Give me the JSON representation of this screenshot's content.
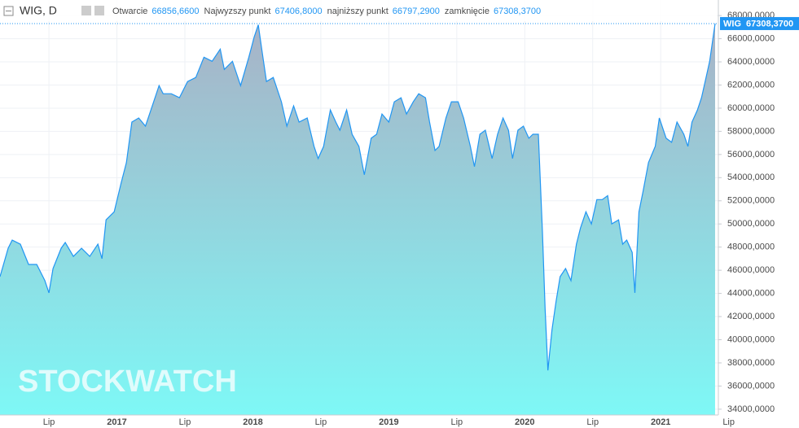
{
  "chart_data": {
    "type": "area",
    "header": {
      "symbol": "WIG, D",
      "items": [
        {
          "label": "Otwarcie",
          "value": "66856,6600"
        },
        {
          "label": "Najwyzszy punkt",
          "value": "67406,8000"
        },
        {
          "label": "najniższy punkt",
          "value": "66797,2900"
        },
        {
          "label": "zamknięcie",
          "value": "67308,3700"
        }
      ]
    },
    "watermark": "STOCKWATCH",
    "x": [
      2016.14,
      2016.2,
      2016.23,
      2016.29,
      2016.35,
      2016.41,
      2016.47,
      2016.5,
      2016.53,
      2016.59,
      2016.62,
      2016.68,
      2016.74,
      2016.8,
      2016.86,
      2016.89,
      2016.92,
      2016.98,
      2017.03,
      2017.07,
      2017.11,
      2017.16,
      2017.21,
      2017.25,
      2017.31,
      2017.34,
      2017.4,
      2017.46,
      2017.52,
      2017.58,
      2017.64,
      2017.7,
      2017.76,
      2017.79,
      2017.85,
      2017.91,
      2017.97,
      2018.01,
      2018.04,
      2018.07,
      2018.1,
      2018.15,
      2018.21,
      2018.25,
      2018.3,
      2018.34,
      2018.4,
      2018.45,
      2018.48,
      2018.52,
      2018.57,
      2018.61,
      2018.64,
      2018.69,
      2018.73,
      2018.78,
      2018.82,
      2018.87,
      2018.91,
      2018.95,
      2019.0,
      2019.04,
      2019.09,
      2019.13,
      2019.18,
      2019.22,
      2019.27,
      2019.3,
      2019.34,
      2019.37,
      2019.42,
      2019.46,
      2019.51,
      2019.55,
      2019.6,
      2019.63,
      2019.67,
      2019.71,
      2019.76,
      2019.8,
      2019.84,
      2019.88,
      2019.91,
      2019.95,
      2019.99,
      2020.03,
      2020.06,
      2020.1,
      2020.13,
      2020.15,
      2020.17,
      2020.2,
      2020.23,
      2020.26,
      2020.3,
      2020.34,
      2020.38,
      2020.41,
      2020.45,
      2020.49,
      2020.53,
      2020.57,
      2020.61,
      2020.64,
      2020.69,
      2020.72,
      2020.75,
      2020.79,
      2020.81,
      2020.84,
      2020.87,
      2020.91,
      2020.96,
      2020.99,
      2021.04,
      2021.08,
      2021.12,
      2021.17,
      2021.2,
      2021.23,
      2021.27,
      2021.3,
      2021.34,
      2021.36,
      2021.39,
      2021.4
    ],
    "series": [
      {
        "name": "WIG",
        "color": "#2196f3",
        "last_label": "67308,3700",
        "values": [
          45450,
          47900,
          48600,
          48250,
          46500,
          46500,
          45100,
          44050,
          46150,
          47900,
          48400,
          47200,
          47900,
          47200,
          48250,
          47000,
          50350,
          51050,
          53500,
          55300,
          58800,
          59150,
          58450,
          59850,
          61950,
          61250,
          61250,
          60900,
          62300,
          62650,
          64400,
          64050,
          65100,
          63350,
          64050,
          61950,
          64400,
          66150,
          67200,
          64750,
          62300,
          62650,
          60550,
          58450,
          60200,
          58800,
          59150,
          56700,
          55650,
          56700,
          59850,
          58800,
          58100,
          59850,
          57750,
          56700,
          54250,
          57400,
          57750,
          59500,
          58800,
          60550,
          60900,
          59500,
          60550,
          61250,
          60900,
          58800,
          56350,
          56700,
          59150,
          60550,
          60550,
          59150,
          56700,
          54950,
          57750,
          58100,
          55650,
          57750,
          59150,
          58100,
          55650,
          58100,
          58450,
          57400,
          57750,
          57750,
          49300,
          42650,
          37350,
          40850,
          43300,
          45450,
          46150,
          45100,
          48250,
          49650,
          51050,
          50000,
          52100,
          52100,
          52450,
          50000,
          50350,
          48250,
          48600,
          47550,
          44050,
          51050,
          52800,
          55300,
          56700,
          59150,
          57400,
          57050,
          58800,
          57750,
          56700,
          58800,
          59850,
          60900,
          63000,
          64050,
          66500,
          67308.37
        ]
      }
    ],
    "xlim": [
      2016.14,
      2021.52
    ],
    "xticks": [
      {
        "value": 2016.5,
        "label": "Lip"
      },
      2017,
      {
        "value": 2017.5,
        "label": "Lip"
      },
      2018,
      {
        "value": 2018.5,
        "label": "Lip"
      },
      2019,
      {
        "value": 2019.5,
        "label": "Lip"
      },
      2020,
      {
        "value": 2020.5,
        "label": "Lip"
      },
      2021,
      {
        "value": 2021.5,
        "label": "Lip"
      }
    ],
    "ylim": [
      33500,
      68500
    ],
    "yticks": [
      {
        "value": 34000,
        "label": "34000,0000"
      },
      {
        "value": 36000,
        "label": "36000,0000"
      },
      {
        "value": 38000,
        "label": "38000,0000"
      },
      {
        "value": 40000,
        "label": "40000,0000"
      },
      {
        "value": 42000,
        "label": "42000,0000"
      },
      {
        "value": 44000,
        "label": "44000,0000"
      },
      {
        "value": 46000,
        "label": "46000,0000"
      },
      {
        "value": 48000,
        "label": "48000,0000"
      },
      {
        "value": 50000,
        "label": "50000,0000"
      },
      {
        "value": 52000,
        "label": "52000,0000"
      },
      {
        "value": 54000,
        "label": "54000,0000"
      },
      {
        "value": 56000,
        "label": "56000,0000"
      },
      {
        "value": 58000,
        "label": "58000,0000"
      },
      {
        "value": 60000,
        "label": "60000,0000"
      },
      {
        "value": 62000,
        "label": "62000,0000"
      },
      {
        "value": 64000,
        "label": "64000,0000"
      },
      {
        "value": 66000,
        "label": "66000,0000"
      },
      {
        "value": 68000,
        "label": "68000,0000"
      }
    ],
    "grid": true
  }
}
